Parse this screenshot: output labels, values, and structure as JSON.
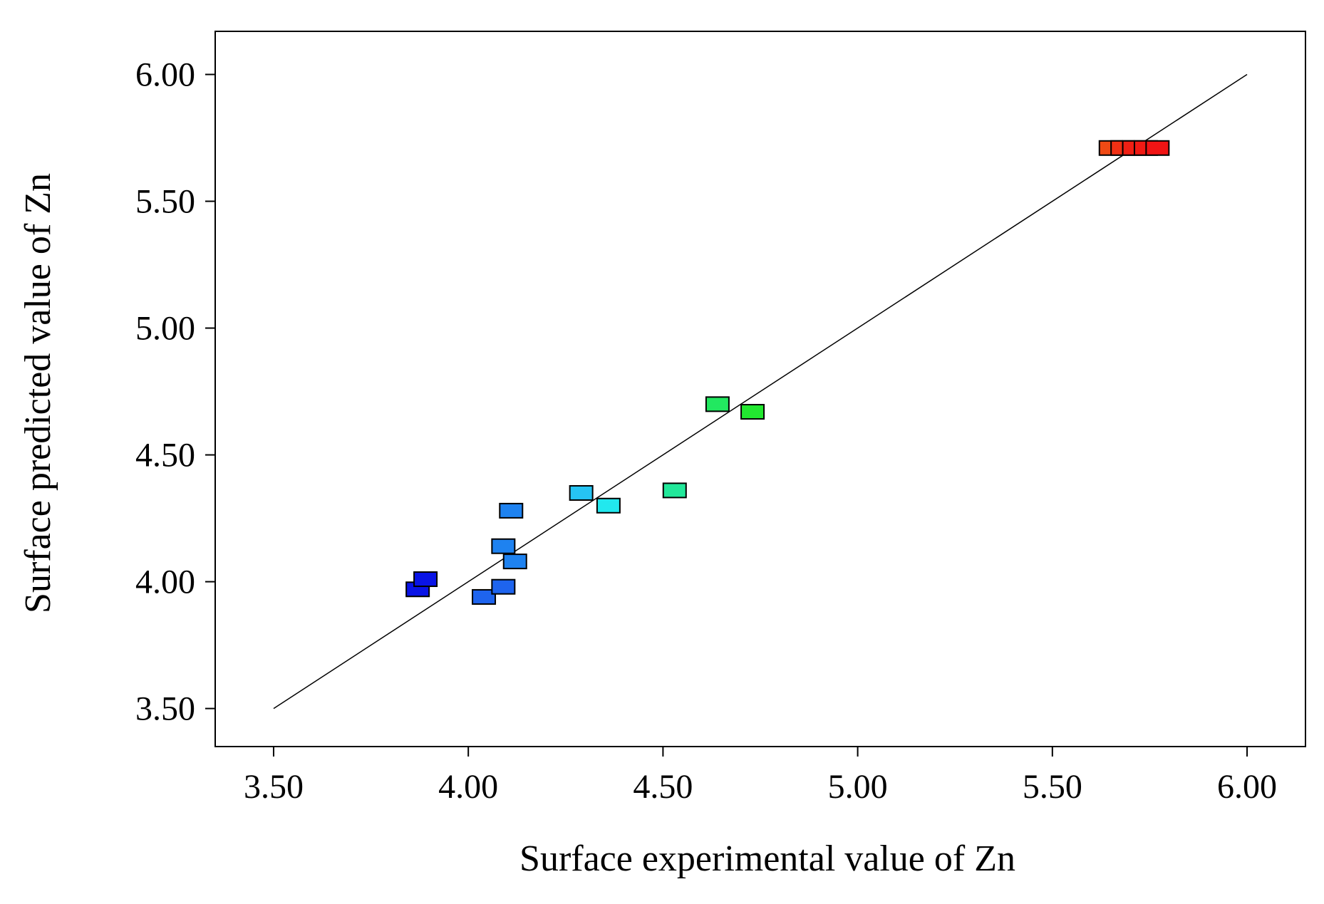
{
  "chart_data": {
    "type": "scatter",
    "title": "",
    "xlabel": "Surface experimental value of Zn",
    "ylabel": "Surface predicted value of Zn",
    "xlim": [
      3.35,
      6.15
    ],
    "ylim": [
      3.35,
      6.17
    ],
    "x_ticks": [
      "3.50",
      "4.00",
      "4.50",
      "5.00",
      "5.50",
      "6.00"
    ],
    "y_ticks": [
      "3.50",
      "4.00",
      "4.50",
      "5.00",
      "5.50",
      "6.00"
    ],
    "grid": false,
    "legend": "none",
    "reference_line": {
      "from": [
        3.5,
        3.5
      ],
      "to": [
        6.0,
        6.0
      ]
    },
    "points": [
      {
        "x": 3.87,
        "y": 3.97,
        "color": "#0a14e6"
      },
      {
        "x": 3.89,
        "y": 4.01,
        "color": "#0a14e6"
      },
      {
        "x": 4.04,
        "y": 3.94,
        "color": "#1e64ee"
      },
      {
        "x": 4.09,
        "y": 3.98,
        "color": "#1e64ee"
      },
      {
        "x": 4.09,
        "y": 4.14,
        "color": "#1e82f0"
      },
      {
        "x": 4.12,
        "y": 4.08,
        "color": "#1e82f0"
      },
      {
        "x": 4.11,
        "y": 4.28,
        "color": "#1e82f0"
      },
      {
        "x": 4.29,
        "y": 4.35,
        "color": "#26c4f4"
      },
      {
        "x": 4.36,
        "y": 4.3,
        "color": "#22e8ee"
      },
      {
        "x": 4.53,
        "y": 4.36,
        "color": "#22e89a"
      },
      {
        "x": 4.64,
        "y": 4.7,
        "color": "#22e860"
      },
      {
        "x": 4.73,
        "y": 4.67,
        "color": "#22e830"
      },
      {
        "x": 5.65,
        "y": 5.71,
        "color": "#f04a14"
      },
      {
        "x": 5.68,
        "y": 5.71,
        "color": "#f03014"
      },
      {
        "x": 5.71,
        "y": 5.71,
        "color": "#f02014"
      },
      {
        "x": 5.74,
        "y": 5.71,
        "color": "#f01a14"
      },
      {
        "x": 5.77,
        "y": 5.71,
        "color": "#f01414"
      }
    ]
  }
}
